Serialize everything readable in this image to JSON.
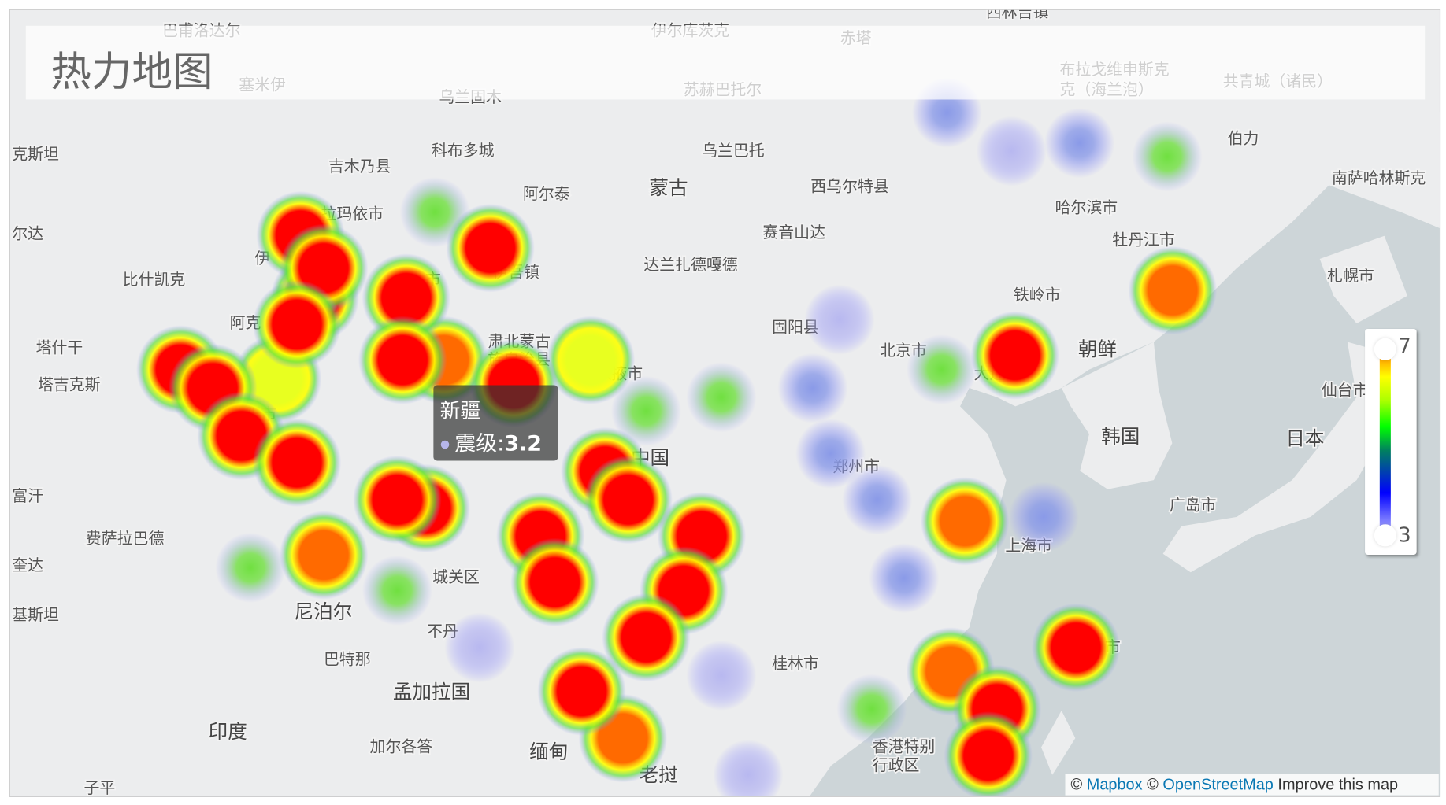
{
  "title": "热力地图",
  "legend": {
    "max": "7",
    "min": "3",
    "colors": [
      "#b8b8ff",
      "#0000ff",
      "#008060",
      "#00ff00",
      "#ffff00",
      "#ff7700"
    ]
  },
  "tooltip": {
    "region": "新疆",
    "label": "震级",
    "value": "3.2"
  },
  "attribution": {
    "copy1": "©",
    "mapbox": "Mapbox",
    "copy2": "©",
    "osm": "OpenStreetMap",
    "improve": "Improve this map"
  },
  "colors": {
    "land": "#ecedee",
    "sea": "#cdd5d8"
  },
  "map_labels": [
    "巴甫洛达尔",
    "伊尔库茨克",
    "赤塔",
    "西林吉镇",
    "塞米伊",
    "乌兰固木",
    "苏赫巴托尔",
    "布拉戈维申斯克",
    "克（海兰泡）",
    "共青城（诸民）",
    "克斯坦",
    "吉木乃县",
    "科布多城",
    "乌兰巴托",
    "蒙古",
    "西乌尔特县",
    "阿尔泰",
    "伯力",
    "哈尔滨市",
    "南萨哈林斯克",
    "拉玛依市",
    "赛音山达",
    "牡丹江市",
    "尔达",
    "伊吾镇",
    "达兰扎德嘎德",
    "比什凯克",
    "札幌市",
    "铁岭市",
    "固阳县",
    "阿克",
    "北京市",
    "朝鲜",
    "塔什干",
    "肃北蒙古",
    "族自治县",
    "张掖市",
    "大连市",
    "塔吉克斯",
    "仙台市",
    "韩国",
    "日本",
    "中国",
    "郑州市",
    "富汗",
    "广岛市",
    "费萨拉巴德",
    "上海市",
    "奎达",
    "城关区",
    "尼泊尔",
    "基斯坦",
    "不丹",
    "巴特那",
    "桂林市",
    "孟加拉国",
    "印度",
    "加尔各答",
    "缅甸",
    "香港特别",
    "行政区",
    "老挝",
    "市",
    "伊",
    "市",
    "阳市",
    "子平"
  ],
  "heatmap": {
    "value_field": "震级",
    "range": [
      3,
      7
    ],
    "points": [
      [
        82.5,
        45.5,
        7
      ],
      [
        83.3,
        43.0,
        7
      ],
      [
        83.8,
        44.2,
        7
      ],
      [
        82.3,
        41.9,
        7
      ],
      [
        75.8,
        40.0,
        7
      ],
      [
        77.6,
        39.2,
        7
      ],
      [
        79.2,
        37.1,
        7
      ],
      [
        82.3,
        35.9,
        7
      ],
      [
        81.2,
        39.6,
        5.5
      ],
      [
        88.4,
        43.0,
        7
      ],
      [
        88.2,
        40.4,
        7
      ],
      [
        90.5,
        40.4,
        6.2
      ],
      [
        93.1,
        45.0,
        7
      ],
      [
        90.0,
        46.4,
        5
      ],
      [
        94.4,
        39.4,
        7
      ],
      [
        89.5,
        33.8,
        7
      ],
      [
        87.9,
        34.2,
        7
      ],
      [
        83.8,
        31.6,
        6.2
      ],
      [
        79.7,
        31.0,
        5
      ],
      [
        87.9,
        29.9,
        5
      ],
      [
        95.9,
        32.5,
        7
      ],
      [
        96.7,
        30.3,
        7
      ],
      [
        99.5,
        35.5,
        7
      ],
      [
        100.8,
        34.2,
        7
      ],
      [
        104.9,
        32.5,
        7
      ],
      [
        103.9,
        29.9,
        7
      ],
      [
        101.8,
        27.6,
        7
      ],
      [
        98.2,
        24.9,
        7
      ],
      [
        100.5,
        22.5,
        6.2
      ],
      [
        98.7,
        40.4,
        5.5
      ],
      [
        101.8,
        38.2,
        5
      ],
      [
        106.0,
        38.8,
        5
      ],
      [
        111.1,
        39.2,
        4.6
      ],
      [
        112.6,
        42.1,
        3.5
      ],
      [
        112.1,
        36.3,
        4.6
      ],
      [
        114.7,
        34.2,
        4
      ],
      [
        118.3,
        40.0,
        5
      ],
      [
        122.4,
        40.6,
        7
      ],
      [
        119.6,
        33.2,
        6.5
      ],
      [
        124.0,
        33.4,
        4.8
      ],
      [
        116.2,
        30.5,
        4.8
      ],
      [
        114.4,
        24.0,
        5.3
      ],
      [
        118.8,
        25.9,
        6.5
      ],
      [
        121.4,
        24.0,
        7
      ],
      [
        125.8,
        27.1,
        7
      ],
      [
        120.9,
        21.6,
        7
      ],
      [
        131.2,
        43.3,
        6.2
      ],
      [
        130.9,
        48.5,
        5
      ],
      [
        126.0,
        49.0,
        4
      ],
      [
        122.2,
        48.7,
        3.5
      ],
      [
        118.6,
        50.1,
        4
      ],
      [
        92.5,
        27.1,
        3.5
      ],
      [
        106.0,
        25.7,
        3.5
      ],
      [
        107.5,
        20.6,
        3.5
      ]
    ]
  }
}
